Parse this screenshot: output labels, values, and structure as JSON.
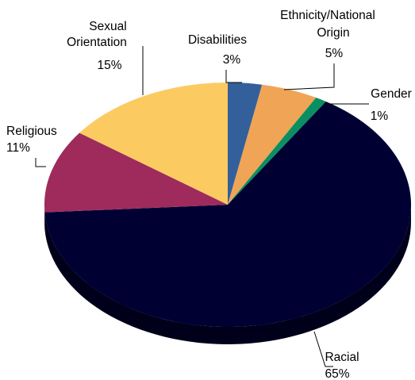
{
  "chart_data": {
    "type": "pie",
    "three_d": true,
    "legend": "none",
    "slices": [
      {
        "label": "Disabilities",
        "value": 3,
        "value_label": "3%",
        "color": "#33609A",
        "side_color": "#1F3F6B"
      },
      {
        "label": "Ethnicity/National Origin",
        "value": 5,
        "value_label": "5%",
        "color": "#F0A456",
        "side_color": "#B57A3E"
      },
      {
        "label": "Gender",
        "value": 1,
        "value_label": "1%",
        "color": "#0A8F62",
        "side_color": "#066344"
      },
      {
        "label": "Racial",
        "value": 65,
        "value_label": "65%",
        "color": "#000033",
        "side_color": "#00001A"
      },
      {
        "label": "Religious",
        "value": 11,
        "value_label": "11%",
        "color": "#9E2B5C",
        "side_color": "#6E1E40"
      },
      {
        "label": "Sexual Orientation",
        "value": 15,
        "value_label": "15%",
        "color": "#FBCB62",
        "side_color": "#C49C45"
      }
    ]
  }
}
